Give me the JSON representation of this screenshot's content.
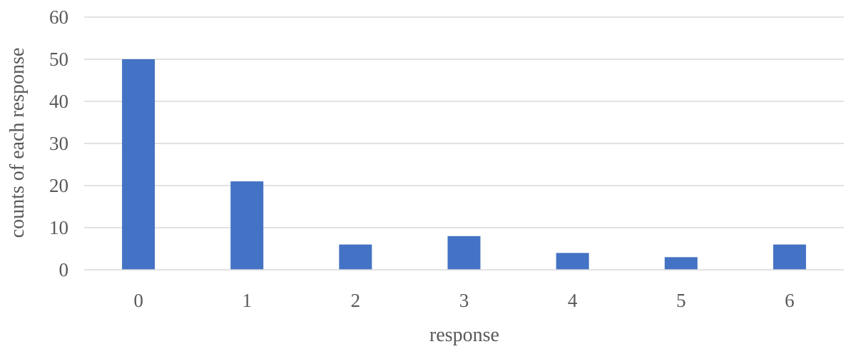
{
  "chart_data": {
    "type": "bar",
    "categories": [
      "0",
      "1",
      "2",
      "3",
      "4",
      "5",
      "6"
    ],
    "values": [
      50,
      21,
      6,
      8,
      4,
      3,
      6
    ],
    "title": "",
    "xlabel": "response",
    "ylabel": "counts of each response",
    "ylim": [
      0,
      60
    ],
    "yticks": [
      0,
      10,
      20,
      30,
      40,
      50,
      60
    ],
    "grid": true,
    "legend": "none",
    "colors": {
      "bar": "#4472c4",
      "grid": "#d9d9d9",
      "text": "#595959"
    }
  }
}
